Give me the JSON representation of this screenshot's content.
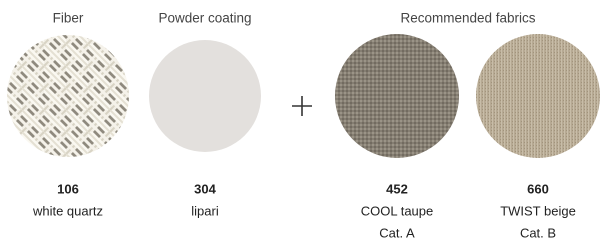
{
  "headers": {
    "fiber": "Fiber",
    "powder_coating": "Powder coating",
    "fabrics": "Recommended fabrics"
  },
  "swatches": [
    {
      "code": "106",
      "name": "white quartz"
    },
    {
      "code": "304",
      "name": "lipari"
    },
    {
      "code": "452",
      "name": "COOL taupe",
      "category": "Cat. A"
    },
    {
      "code": "660",
      "name": "TWIST beige",
      "category": "Cat. B"
    }
  ]
}
